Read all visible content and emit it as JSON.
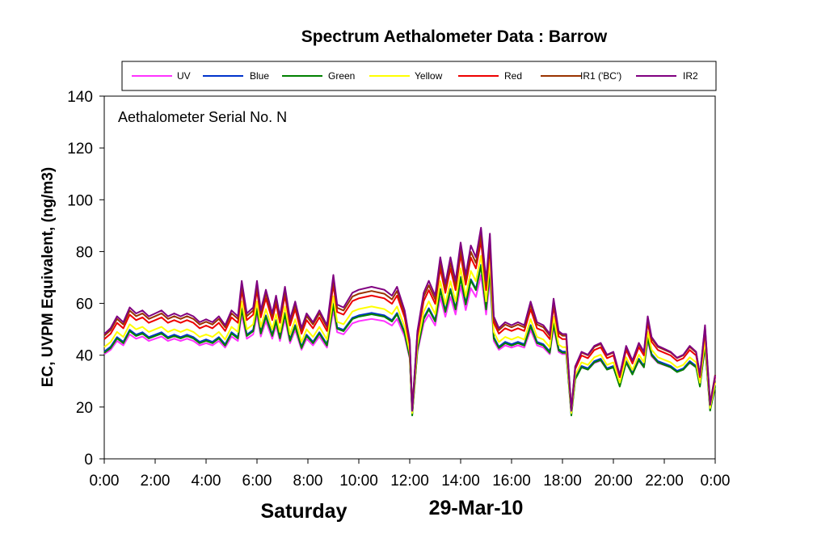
{
  "chart_data": {
    "type": "line",
    "title": "Spectrum Aethalometer Data  :  Barrow",
    "ylabel": "EC, UVPM Equivalent, (ng/m3)",
    "annotation": "Aethalometer  Serial No. N",
    "day_label": "Saturday",
    "date_label": "29-Mar-10",
    "ylim": [
      0,
      140
    ],
    "yticks": [
      "0",
      "20",
      "40",
      "60",
      "80",
      "100",
      "120",
      "140"
    ],
    "xlim": [
      0,
      24
    ],
    "xticks": [
      "0:00",
      "2:00",
      "4:00",
      "6:00",
      "8:00",
      "10:00",
      "12:00",
      "14:00",
      "16:00",
      "18:00",
      "20:00",
      "22:00",
      "0:00"
    ],
    "legend_position": "top",
    "grid": false,
    "base_profile": {
      "hours": [
        0,
        0.25,
        0.5,
        0.75,
        1.0,
        1.25,
        1.5,
        1.75,
        2.0,
        2.25,
        2.5,
        2.75,
        3.0,
        3.25,
        3.5,
        3.75,
        4.0,
        4.25,
        4.5,
        4.75,
        5.0,
        5.25,
        5.4,
        5.6,
        5.85,
        6.0,
        6.15,
        6.35,
        6.6,
        6.75,
        6.9,
        7.1,
        7.3,
        7.5,
        7.75,
        7.95,
        8.2,
        8.45,
        8.75,
        9.0,
        9.15,
        9.4,
        9.75,
        10.0,
        10.5,
        11.0,
        11.3,
        11.5,
        11.8,
        12.0,
        12.1,
        12.3,
        12.55,
        12.75,
        13.0,
        13.2,
        13.4,
        13.6,
        13.8,
        14.0,
        14.2,
        14.4,
        14.6,
        14.8,
        15.0,
        15.15,
        15.3,
        15.5,
        15.75,
        16.0,
        16.25,
        16.5,
        16.75,
        17.0,
        17.25,
        17.5,
        17.65,
        17.85,
        18.0,
        18.15,
        18.35,
        18.5,
        18.75,
        19.0,
        19.25,
        19.5,
        19.75,
        20.0,
        20.25,
        20.5,
        20.75,
        21.0,
        21.2,
        21.35,
        21.5,
        21.75,
        22.0,
        22.25,
        22.5,
        22.75,
        23.0,
        23.25,
        23.4,
        23.6,
        23.8,
        24.0
      ],
      "values": [
        44,
        46,
        50,
        48,
        53,
        51,
        52,
        50,
        51,
        52,
        50,
        51,
        50,
        51,
        50,
        48,
        49,
        48,
        50,
        47,
        52,
        50,
        62,
        51,
        53,
        62,
        52,
        59,
        51,
        57,
        50,
        60,
        49,
        55,
        46,
        51,
        48,
        52,
        47,
        64,
        54,
        53,
        58,
        59,
        60,
        59,
        57,
        60,
        52,
        42,
        18,
        45,
        58,
        62,
        57,
        70,
        61,
        70,
        62,
        75,
        64,
        74,
        70,
        80,
        62,
        78,
        50,
        46,
        48,
        47,
        48,
        47,
        55,
        48,
        47,
        44,
        56,
        45,
        44,
        44,
        18,
        33,
        38,
        37,
        40,
        41,
        37,
        38,
        30,
        40,
        35,
        41,
        38,
        50,
        43,
        40,
        39,
        38,
        36,
        37,
        40,
        38,
        30,
        47,
        20,
        30
      ]
    },
    "series": [
      {
        "name": "UV",
        "color": "#ff33ff",
        "scale": 0.85,
        "offset": 3
      },
      {
        "name": "Blue",
        "color": "#0033cc",
        "scale": 0.93,
        "offset": 0.5
      },
      {
        "name": "Green",
        "color": "#008000",
        "scale": 0.93,
        "offset": 0
      },
      {
        "name": "Yellow",
        "color": "#ffff00",
        "scale": 0.98,
        "offset": 0
      },
      {
        "name": "Red",
        "color": "#ee0000",
        "scale": 1.05,
        "offset": 0
      },
      {
        "name": "IR1 ('BC')",
        "color": "#993300",
        "scale": 1.08,
        "offset": 0
      },
      {
        "name": "IR2",
        "color": "#800080",
        "scale": 1.14,
        "offset": -2
      }
    ]
  }
}
